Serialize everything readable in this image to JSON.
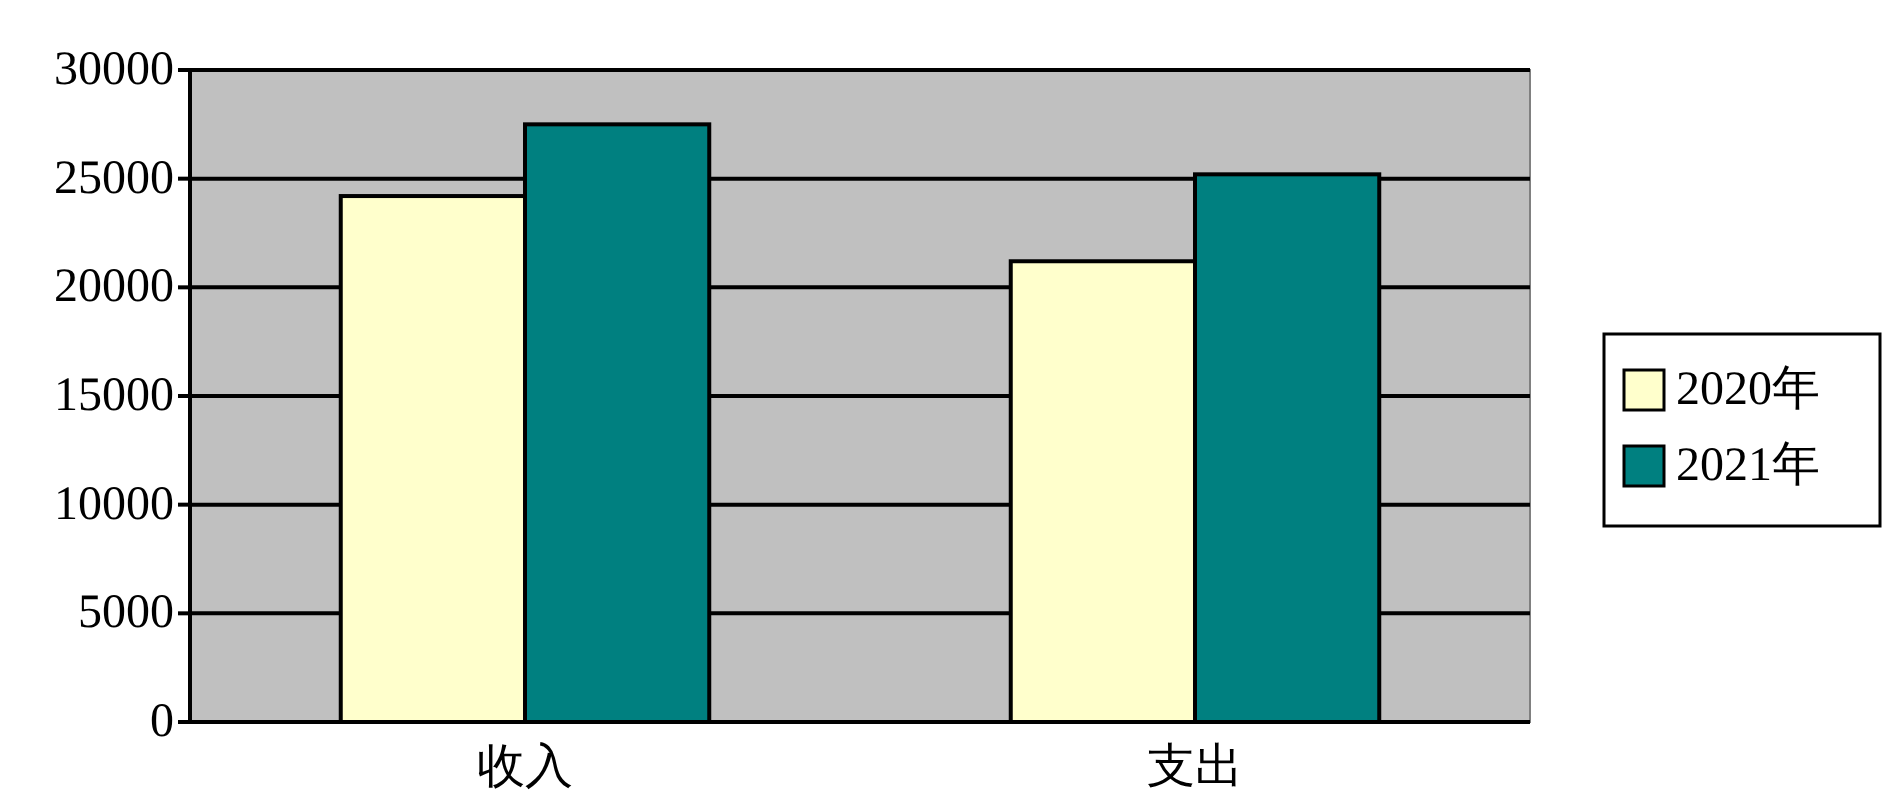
{
  "chart_data": {
    "type": "bar",
    "categories": [
      "收入",
      "支出"
    ],
    "series": [
      {
        "name": "2020年",
        "color": "#ffffcc",
        "values": [
          24200,
          21200
        ]
      },
      {
        "name": "2021年",
        "color": "#008080",
        "values": [
          27500,
          25200
        ]
      }
    ],
    "ylim": [
      0,
      30000
    ],
    "yticks": [
      0,
      5000,
      10000,
      15000,
      20000,
      25000,
      30000
    ],
    "grid": "y",
    "legend": "right"
  }
}
